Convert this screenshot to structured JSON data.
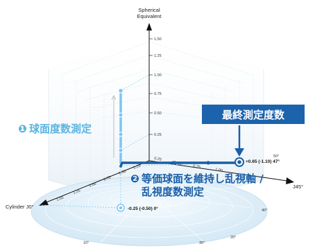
{
  "axes": {
    "vertical_title_line1": "Spherical",
    "vertical_title_line2": "Equivalent",
    "left_title": "Cylinder J0°",
    "right_title": "J45°"
  },
  "vertical_ticks": [
    "1.50",
    "1.25",
    "1.00",
    "0.75",
    "0.50",
    "0.25"
  ],
  "left_axis_ticks": [
    "1.50",
    "1.25",
    "1.00",
    "0.75",
    "0.50",
    "0.25"
  ],
  "right_axis_ticks": [
    "0.25",
    "0.50",
    "0.75",
    "1.00"
  ],
  "angle_labels": [
    "50°",
    "40°",
    "30°",
    "20°",
    "10°"
  ],
  "callouts": {
    "sphere_num": "❶",
    "sphere_text": "球面度数測定",
    "cyl_num": "❷",
    "cyl_line1": "等価球面を維持し乱視軸 /",
    "cyl_line2": "乱視度数測定",
    "final_badge": "最終測定度数"
  },
  "value_labels": {
    "final": "+0.65 (-1.10) 47°",
    "bottom": "-0.25 (-0.50) 0°"
  },
  "colors": {
    "badge_bg": "#1c63ad",
    "sphere_text": "#5ab4e0",
    "dark_blue": "#1a5fa8",
    "light_blue": "#7cc6f0"
  }
}
